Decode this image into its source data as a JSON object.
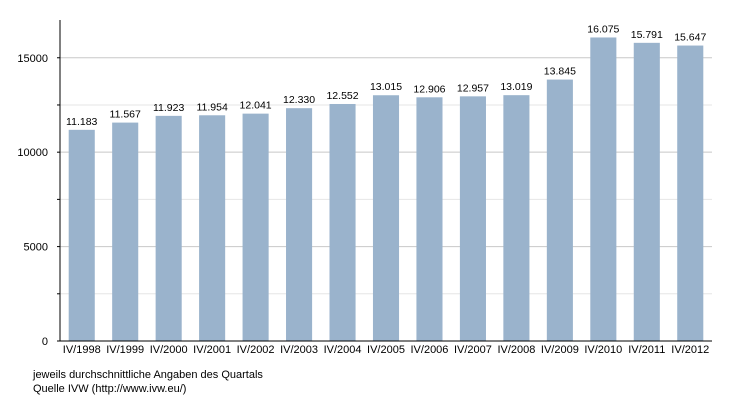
{
  "chart_data": {
    "type": "bar",
    "categories": [
      "IV/1998",
      "IV/1999",
      "IV/2000",
      "IV/2001",
      "IV/2002",
      "IV/2003",
      "IV/2004",
      "IV/2005",
      "IV/2006",
      "IV/2007",
      "IV/2008",
      "IV/2009",
      "IV/2010",
      "IV/2011",
      "IV/2012"
    ],
    "values": [
      11183,
      11567,
      11923,
      11954,
      12041,
      12330,
      12552,
      13015,
      12906,
      12957,
      13019,
      13845,
      16075,
      15791,
      15647
    ],
    "data_labels": [
      "11.183",
      "11.567",
      "11.923",
      "11.954",
      "12.041",
      "12.330",
      "12.552",
      "13.015",
      "12.906",
      "12.957",
      "13.019",
      "13.845",
      "16.075",
      "15.791",
      "15.647"
    ],
    "ylim": [
      0,
      17000
    ],
    "yticks": [
      0,
      5000,
      10000,
      15000
    ],
    "ytick_labels": [
      "0",
      "5000",
      "10000",
      "15000"
    ],
    "grid": true,
    "legend": "none",
    "bar_color": "#9ab3cc"
  },
  "footnotes": {
    "line1": "jeweils durchschnittliche Angaben des Quartals",
    "line2": "Quelle IVW (http://www.ivw.eu/)"
  }
}
